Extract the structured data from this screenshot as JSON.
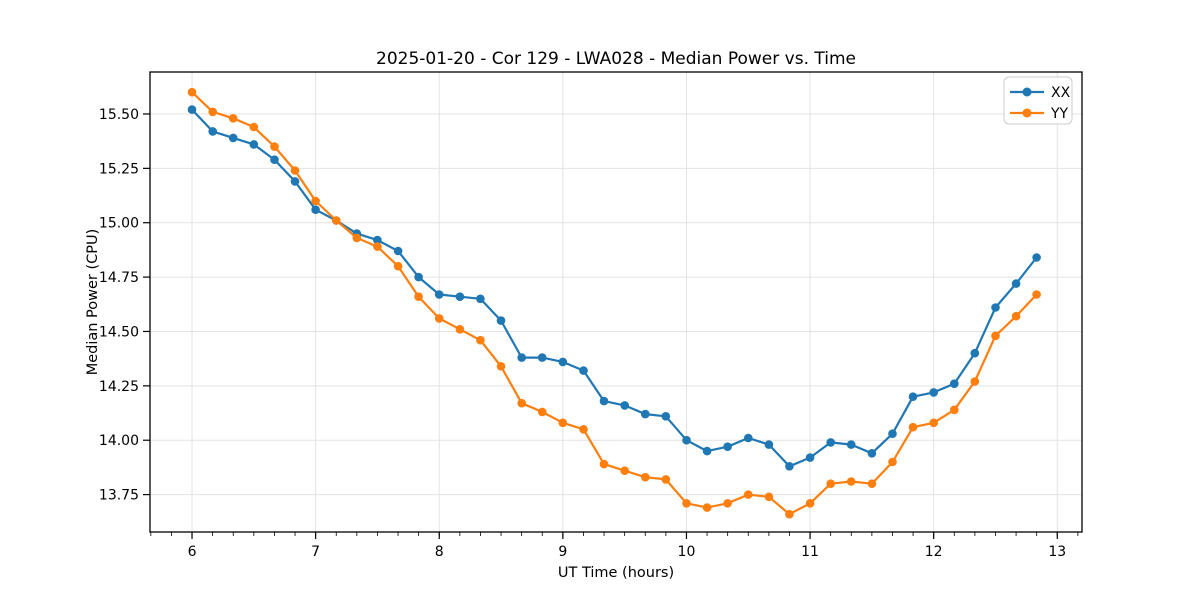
{
  "chart_data": {
    "type": "line",
    "title": "2025-01-20 - Cor 129 - LWA028 - Median Power vs. Time",
    "xlabel": "UT Time (hours)",
    "ylabel": "Median Power (CPU)",
    "xlim": [
      5.66,
      13.2
    ],
    "ylim": [
      13.578,
      15.693
    ],
    "xticks": [
      6,
      7,
      8,
      9,
      10,
      11,
      12,
      13
    ],
    "yticks": [
      13.75,
      14.0,
      14.25,
      14.5,
      14.75,
      15.0,
      15.25,
      15.5
    ],
    "x_minor_step": 0.166667,
    "grid": true,
    "legend_position": "upper right",
    "x": [
      6.0,
      6.167,
      6.333,
      6.5,
      6.667,
      6.833,
      7.0,
      7.167,
      7.333,
      7.5,
      7.667,
      7.833,
      8.0,
      8.167,
      8.333,
      8.5,
      8.667,
      8.833,
      9.0,
      9.167,
      9.333,
      9.5,
      9.667,
      9.833,
      10.0,
      10.167,
      10.333,
      10.5,
      10.667,
      10.833,
      11.0,
      11.167,
      11.333,
      11.5,
      11.667,
      11.833,
      12.0,
      12.167,
      12.333,
      12.5,
      12.667,
      12.833
    ],
    "series": [
      {
        "name": "XX",
        "color": "#1f77b4",
        "values": [
          15.52,
          15.42,
          15.39,
          15.36,
          15.29,
          15.19,
          15.06,
          15.01,
          14.95,
          14.92,
          14.87,
          14.75,
          14.67,
          14.66,
          14.65,
          14.55,
          14.38,
          14.38,
          14.36,
          14.32,
          14.18,
          14.16,
          14.12,
          14.11,
          14.0,
          13.95,
          13.97,
          14.01,
          13.98,
          13.88,
          13.92,
          13.99,
          13.98,
          13.94,
          14.03,
          14.2,
          14.22,
          14.26,
          14.4,
          14.61,
          14.72,
          14.84
        ]
      },
      {
        "name": "YY",
        "color": "#ff7f0e",
        "values": [
          15.6,
          15.51,
          15.48,
          15.44,
          15.35,
          15.24,
          15.1,
          15.01,
          14.93,
          14.89,
          14.8,
          14.66,
          14.56,
          14.51,
          14.46,
          14.34,
          14.17,
          14.13,
          14.08,
          14.05,
          13.89,
          13.86,
          13.83,
          13.82,
          13.71,
          13.69,
          13.71,
          13.75,
          13.74,
          13.66,
          13.71,
          13.8,
          13.81,
          13.8,
          13.9,
          14.06,
          14.08,
          14.14,
          14.27,
          14.48,
          14.57,
          14.67
        ]
      }
    ]
  },
  "style": {
    "grid_color": "#e3e3e3",
    "frame_color": "#000000",
    "legend_border_color": "#cccccc",
    "background": "#ffffff"
  }
}
